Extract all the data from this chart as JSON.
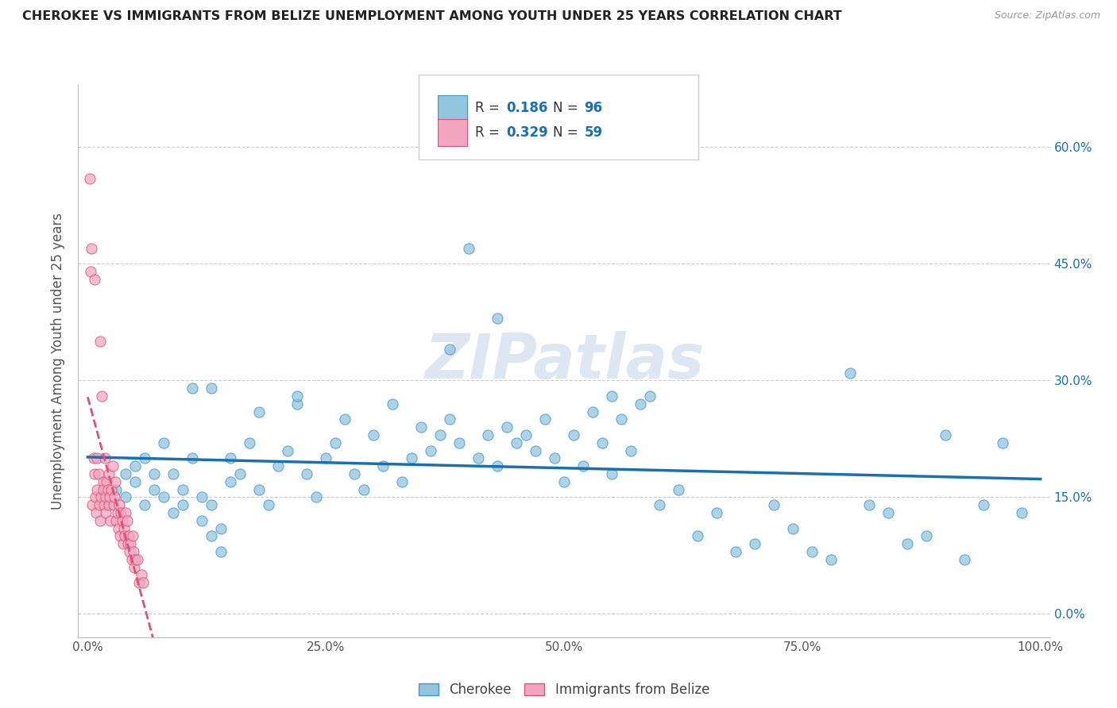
{
  "title": "CHEROKEE VS IMMIGRANTS FROM BELIZE UNEMPLOYMENT AMONG YOUTH UNDER 25 YEARS CORRELATION CHART",
  "source": "Source: ZipAtlas.com",
  "ylabel": "Unemployment Among Youth under 25 years",
  "xlim": [
    -0.01,
    1.01
  ],
  "ylim": [
    -0.03,
    0.68
  ],
  "yticks": [
    0.0,
    0.15,
    0.3,
    0.45,
    0.6
  ],
  "ytick_labels": [
    "0.0%",
    "15.0%",
    "30.0%",
    "45.0%",
    "60.0%"
  ],
  "xticks": [
    0.0,
    0.25,
    0.5,
    0.75,
    1.0
  ],
  "xtick_labels": [
    "0.0%",
    "25.0%",
    "50.0%",
    "75.0%",
    "100.0%"
  ],
  "blue_color": "#92c5de",
  "blue_edge": "#4393c3",
  "pink_color": "#f4a6c0",
  "pink_edge": "#d6537a",
  "blue_line_color": "#1a6faf",
  "pink_line_color": "#d6537a",
  "blue_R": 0.186,
  "blue_N": 96,
  "pink_R": 0.329,
  "pink_N": 59,
  "watermark": "ZIPatlas",
  "watermark_color": "#c8d8e8",
  "legend_labels": [
    "Cherokee",
    "Immigrants from Belize"
  ],
  "blue_scatter_x": [
    0.02,
    0.03,
    0.04,
    0.04,
    0.05,
    0.05,
    0.06,
    0.06,
    0.07,
    0.07,
    0.08,
    0.08,
    0.09,
    0.09,
    0.1,
    0.1,
    0.11,
    0.11,
    0.12,
    0.12,
    0.13,
    0.13,
    0.14,
    0.14,
    0.15,
    0.15,
    0.16,
    0.17,
    0.18,
    0.19,
    0.2,
    0.21,
    0.22,
    0.23,
    0.24,
    0.25,
    0.26,
    0.27,
    0.28,
    0.29,
    0.3,
    0.31,
    0.32,
    0.33,
    0.34,
    0.35,
    0.36,
    0.37,
    0.38,
    0.39,
    0.4,
    0.41,
    0.42,
    0.43,
    0.44,
    0.45,
    0.46,
    0.47,
    0.48,
    0.49,
    0.5,
    0.51,
    0.52,
    0.53,
    0.54,
    0.55,
    0.56,
    0.57,
    0.58,
    0.59,
    0.6,
    0.62,
    0.64,
    0.66,
    0.68,
    0.7,
    0.72,
    0.74,
    0.76,
    0.78,
    0.8,
    0.82,
    0.84,
    0.86,
    0.88,
    0.9,
    0.92,
    0.94,
    0.96,
    0.98,
    0.55,
    0.43,
    0.38,
    0.22,
    0.18,
    0.13
  ],
  "blue_scatter_y": [
    0.14,
    0.16,
    0.15,
    0.18,
    0.17,
    0.19,
    0.14,
    0.2,
    0.16,
    0.18,
    0.15,
    0.22,
    0.13,
    0.18,
    0.14,
    0.16,
    0.2,
    0.29,
    0.15,
    0.12,
    0.1,
    0.14,
    0.08,
    0.11,
    0.17,
    0.2,
    0.18,
    0.22,
    0.16,
    0.14,
    0.19,
    0.21,
    0.27,
    0.18,
    0.15,
    0.2,
    0.22,
    0.25,
    0.18,
    0.16,
    0.23,
    0.19,
    0.27,
    0.17,
    0.2,
    0.24,
    0.21,
    0.23,
    0.25,
    0.22,
    0.47,
    0.2,
    0.23,
    0.19,
    0.24,
    0.22,
    0.23,
    0.21,
    0.25,
    0.2,
    0.17,
    0.23,
    0.19,
    0.26,
    0.22,
    0.18,
    0.25,
    0.21,
    0.27,
    0.28,
    0.14,
    0.16,
    0.1,
    0.13,
    0.08,
    0.09,
    0.14,
    0.11,
    0.08,
    0.07,
    0.31,
    0.14,
    0.13,
    0.09,
    0.1,
    0.23,
    0.07,
    0.14,
    0.22,
    0.13,
    0.28,
    0.38,
    0.34,
    0.28,
    0.26,
    0.29
  ],
  "pink_scatter_x": [
    0.002,
    0.003,
    0.004,
    0.005,
    0.006,
    0.007,
    0.007,
    0.008,
    0.009,
    0.01,
    0.01,
    0.011,
    0.012,
    0.013,
    0.013,
    0.014,
    0.015,
    0.016,
    0.016,
    0.017,
    0.018,
    0.019,
    0.019,
    0.02,
    0.021,
    0.022,
    0.022,
    0.023,
    0.024,
    0.025,
    0.026,
    0.027,
    0.028,
    0.029,
    0.03,
    0.031,
    0.032,
    0.033,
    0.034,
    0.035,
    0.036,
    0.037,
    0.038,
    0.039,
    0.04,
    0.041,
    0.042,
    0.043,
    0.044,
    0.045,
    0.046,
    0.047,
    0.048,
    0.049,
    0.05,
    0.052,
    0.054,
    0.056,
    0.058
  ],
  "pink_scatter_y": [
    0.56,
    0.44,
    0.47,
    0.14,
    0.2,
    0.18,
    0.43,
    0.15,
    0.13,
    0.2,
    0.16,
    0.18,
    0.14,
    0.12,
    0.35,
    0.15,
    0.28,
    0.17,
    0.16,
    0.14,
    0.2,
    0.15,
    0.13,
    0.17,
    0.16,
    0.14,
    0.18,
    0.15,
    0.12,
    0.16,
    0.19,
    0.14,
    0.15,
    0.17,
    0.12,
    0.13,
    0.11,
    0.14,
    0.1,
    0.13,
    0.12,
    0.09,
    0.11,
    0.1,
    0.13,
    0.12,
    0.09,
    0.1,
    0.08,
    0.09,
    0.07,
    0.1,
    0.08,
    0.06,
    0.07,
    0.07,
    0.04,
    0.05,
    0.04
  ]
}
